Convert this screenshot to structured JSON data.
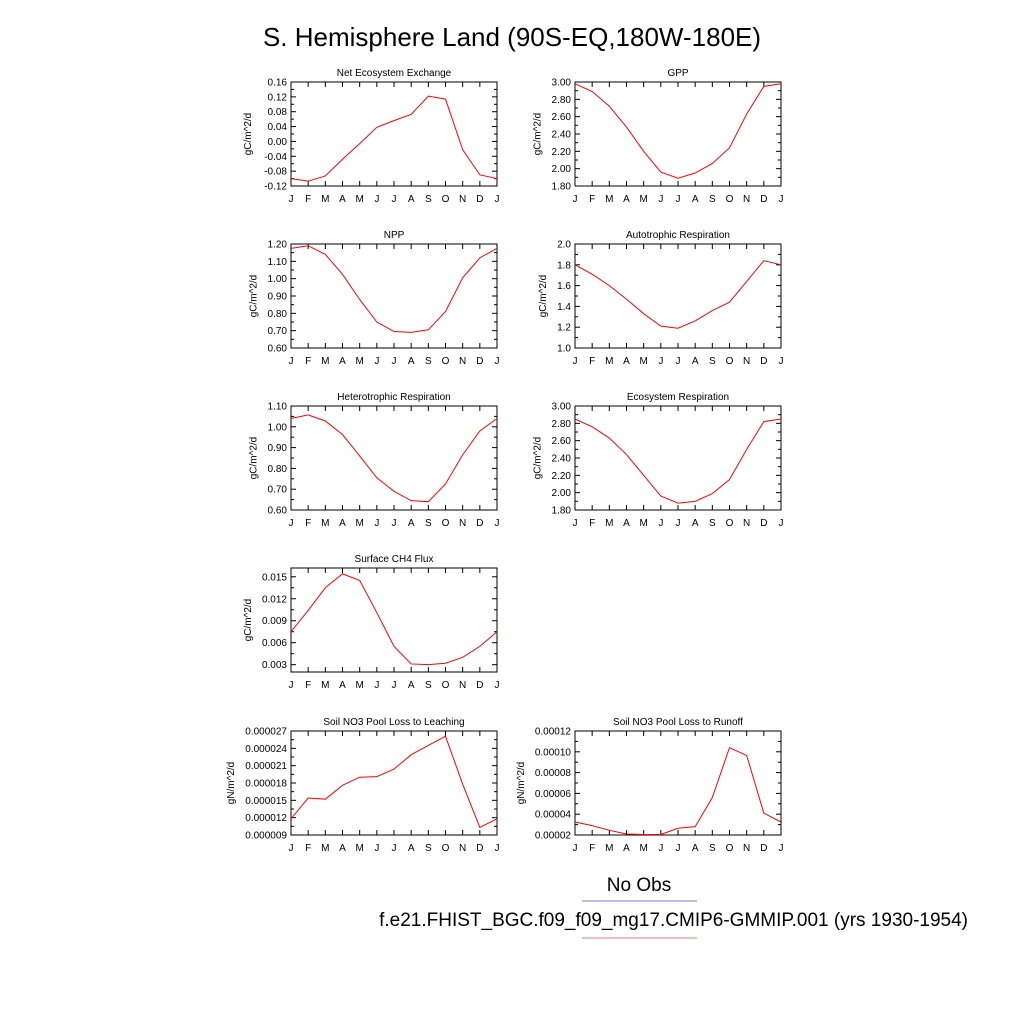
{
  "title": "S. Hemisphere Land (90S-EQ,180W-180E)",
  "months": [
    "J",
    "F",
    "M",
    "A",
    "M",
    "J",
    "J",
    "A",
    "S",
    "O",
    "N",
    "D",
    "J"
  ],
  "legend": {
    "obs_label": "No Obs",
    "obs_color": "#7777ee",
    "model_label": "f.e21.FHIST_BGC.f09_f09_mg17.CMIP6-GMMIP.001 (yrs 1930-1954)",
    "model_color": "#ee7777"
  },
  "line_color": "#ff0000",
  "chart_data": [
    {
      "type": "line",
      "title": "Net Ecosystem Exchange",
      "ylabel": "gC/m^2/d",
      "ylim": [
        -0.12,
        0.16
      ],
      "yticks": [
        "-0.12",
        "-0.08",
        "-0.04",
        "0.00",
        "0.04",
        "0.08",
        "0.12",
        "0.16"
      ],
      "values": [
        -0.1,
        -0.107,
        -0.093,
        -0.048,
        -0.006,
        0.038,
        0.056,
        0.073,
        0.122,
        0.114,
        -0.022,
        -0.09,
        -0.1
      ]
    },
    {
      "type": "line",
      "title": "GPP",
      "ylabel": "gC/m^2/d",
      "ylim": [
        1.8,
        3.0
      ],
      "yticks": [
        "1.80",
        "2.00",
        "2.20",
        "2.40",
        "2.60",
        "2.80",
        "3.00"
      ],
      "values": [
        2.98,
        2.89,
        2.72,
        2.48,
        2.2,
        1.96,
        1.89,
        1.95,
        2.06,
        2.24,
        2.63,
        2.95,
        2.98
      ]
    },
    {
      "type": "line",
      "title": "NPP",
      "ylabel": "gC/m^2/d",
      "ylim": [
        0.6,
        1.2
      ],
      "yticks": [
        "0.60",
        "0.70",
        "0.80",
        "0.90",
        "1.00",
        "1.10",
        "1.20"
      ],
      "values": [
        1.175,
        1.19,
        1.14,
        1.025,
        0.88,
        0.75,
        0.695,
        0.69,
        0.705,
        0.81,
        1.005,
        1.12,
        1.175
      ]
    },
    {
      "type": "line",
      "title": "Autotrophic Respiration",
      "ylabel": "gC/m^2/d",
      "ylim": [
        1.0,
        2.0
      ],
      "yticks": [
        "1.0",
        "1.2",
        "1.4",
        "1.6",
        "1.8",
        "2.0"
      ],
      "values": [
        1.8,
        1.71,
        1.6,
        1.47,
        1.33,
        1.21,
        1.19,
        1.26,
        1.36,
        1.44,
        1.64,
        1.84,
        1.8
      ]
    },
    {
      "type": "line",
      "title": "Heterotrophic Respiration",
      "ylabel": "gC/m^2/d",
      "ylim": [
        0.6,
        1.1
      ],
      "yticks": [
        "0.60",
        "0.70",
        "0.80",
        "0.90",
        "1.00",
        "1.10"
      ],
      "values": [
        1.04,
        1.057,
        1.028,
        0.963,
        0.86,
        0.755,
        0.69,
        0.645,
        0.64,
        0.725,
        0.865,
        0.98,
        1.04
      ]
    },
    {
      "type": "line",
      "title": "Ecosystem Respiration",
      "ylabel": "gC/m^2/d",
      "ylim": [
        1.8,
        3.0
      ],
      "yticks": [
        "1.80",
        "2.00",
        "2.20",
        "2.40",
        "2.60",
        "2.80",
        "3.00"
      ],
      "values": [
        2.85,
        2.76,
        2.63,
        2.44,
        2.2,
        1.96,
        1.88,
        1.9,
        1.99,
        2.15,
        2.5,
        2.82,
        2.85
      ]
    },
    {
      "type": "line",
      "title": "Surface CH4 Flux",
      "ylabel": "gC/m^2/d",
      "ylim": [
        0.002,
        0.0162
      ],
      "yticks": [
        "0.003",
        "0.006",
        "0.009",
        "0.012",
        "0.015"
      ],
      "ytick_values": [
        0.003,
        0.006,
        0.009,
        0.012,
        0.015
      ],
      "values": [
        0.0075,
        0.0104,
        0.0135,
        0.0154,
        0.0145,
        0.0101,
        0.0055,
        0.0031,
        0.003,
        0.0032,
        0.004,
        0.0055,
        0.0075
      ]
    },
    null,
    {
      "type": "line",
      "title": "Soil NO3 Pool Loss to Leaching",
      "ylabel": "gN/m^2/d",
      "ylim": [
        9e-06,
        2.7e-05
      ],
      "yticks": [
        "0.000009",
        "0.000012",
        "0.000015",
        "0.000018",
        "0.000021",
        "0.000024",
        "0.000027"
      ],
      "values": [
        1.18e-05,
        1.54e-05,
        1.52e-05,
        1.76e-05,
        1.9e-05,
        1.91e-05,
        2.04e-05,
        2.29e-05,
        2.45e-05,
        2.61e-05,
        1.78e-05,
        1.03e-05,
        1.18e-05
      ]
    },
    {
      "type": "line",
      "title": "Soil NO3 Pool Loss to Runoff",
      "ylabel": "gN/m^2/d",
      "ylim": [
        2e-05,
        0.00012
      ],
      "yticks": [
        "0.00002",
        "0.00004",
        "0.00006",
        "0.00008",
        "0.00010",
        "0.00012"
      ],
      "values": [
        3.25e-05,
        2.9e-05,
        2.45e-05,
        2.1e-05,
        2.05e-05,
        2.05e-05,
        2.65e-05,
        2.8e-05,
        5.6e-05,
        0.000104,
        9.65e-05,
        4.1e-05,
        3.25e-05
      ]
    }
  ]
}
